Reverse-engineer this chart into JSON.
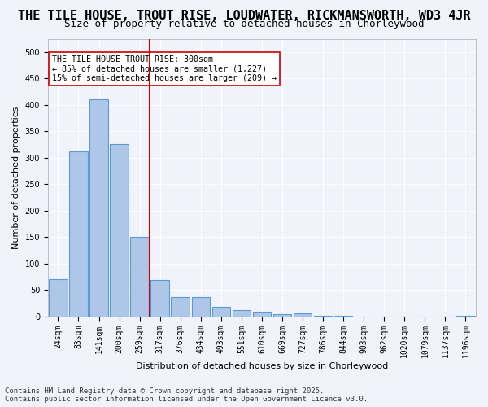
{
  "title": "THE TILE HOUSE, TROUT RISE, LOUDWATER, RICKMANSWORTH, WD3 4JR",
  "subtitle": "Size of property relative to detached houses in Chorleywood",
  "xlabel": "Distribution of detached houses by size in Chorleywood",
  "ylabel": "Number of detached properties",
  "bar_color": "#aec6e8",
  "bar_edge_color": "#5b9bd5",
  "vline_color": "#cc0000",
  "vline_x": 5,
  "annotation_text": "THE TILE HOUSE TROUT RISE: 300sqm\n← 85% of detached houses are smaller (1,227)\n15% of semi-detached houses are larger (209) →",
  "annotation_box_color": "#ffffff",
  "annotation_box_edge": "#cc0000",
  "footer_text": "Contains HM Land Registry data © Crown copyright and database right 2025.\nContains public sector information licensed under the Open Government Licence v3.0.",
  "categories": [
    "24sqm",
    "83sqm",
    "141sqm",
    "200sqm",
    "259sqm",
    "317sqm",
    "376sqm",
    "434sqm",
    "493sqm",
    "551sqm",
    "610sqm",
    "669sqm",
    "727sqm",
    "786sqm",
    "844sqm",
    "903sqm",
    "962sqm",
    "1020sqm",
    "1079sqm",
    "1137sqm",
    "1196sqm"
  ],
  "values": [
    70,
    312,
    410,
    325,
    150,
    68,
    37,
    37,
    18,
    12,
    8,
    4,
    5,
    1,
    1,
    0,
    0,
    0,
    0,
    0,
    1
  ],
  "ylim": [
    0,
    525
  ],
  "yticks": [
    0,
    50,
    100,
    150,
    200,
    250,
    300,
    350,
    400,
    450,
    500
  ],
  "background_color": "#f0f4fa",
  "grid_color": "#ffffff",
  "title_fontsize": 11,
  "subtitle_fontsize": 9,
  "tick_fontsize": 7,
  "label_fontsize": 8,
  "footer_fontsize": 6.5
}
